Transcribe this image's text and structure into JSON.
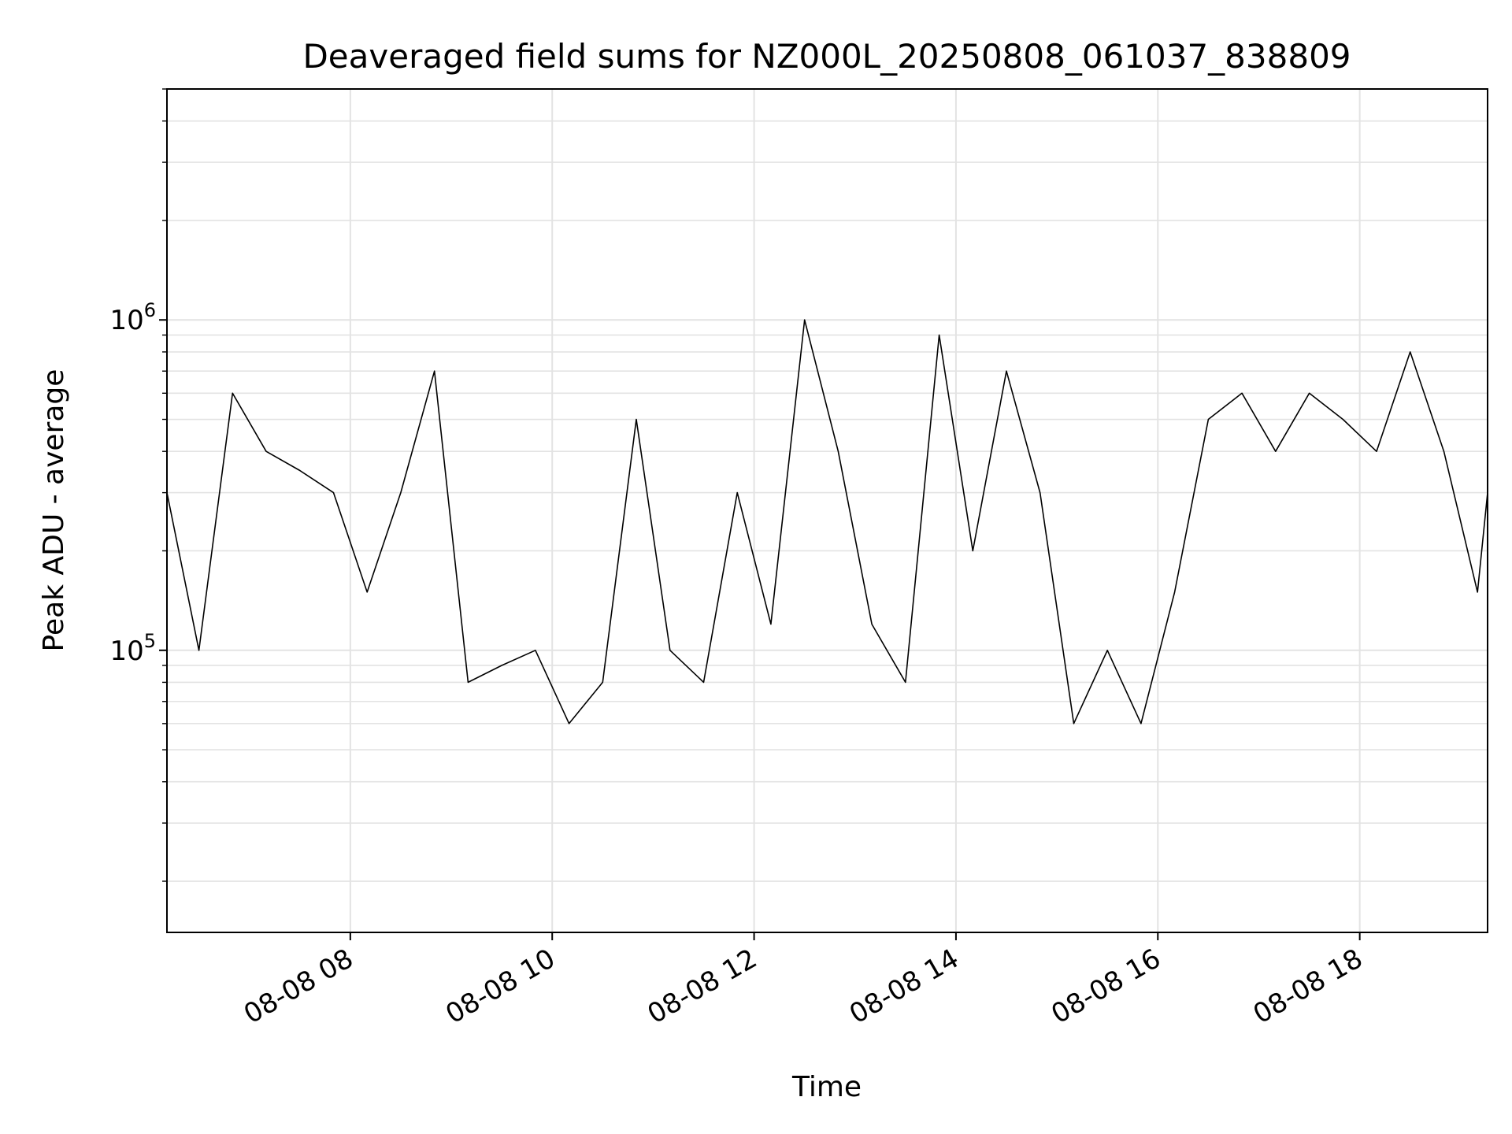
{
  "chart_data": {
    "type": "line",
    "title": "Deaveraged field sums for NZ000L_20250808_061037_838809",
    "xlabel": "Time",
    "ylabel": "Peak ADU - average",
    "yscale": "log",
    "ylim": [
      14000,
      5000000
    ],
    "xlim": [
      "2025-08-08 06:11",
      "2025-08-08 19:16"
    ],
    "grid": true,
    "x_ticks": [
      {
        "value": "2025-08-08 08:00",
        "label": "08-08 08"
      },
      {
        "value": "2025-08-08 10:00",
        "label": "08-08 10"
      },
      {
        "value": "2025-08-08 12:00",
        "label": "08-08 12"
      },
      {
        "value": "2025-08-08 14:00",
        "label": "08-08 14"
      },
      {
        "value": "2025-08-08 16:00",
        "label": "08-08 16"
      },
      {
        "value": "2025-08-08 18:00",
        "label": "08-08 18"
      }
    ],
    "y_ticks": [
      {
        "value": 100000,
        "base": "10",
        "exp": "5"
      },
      {
        "value": 1000000,
        "base": "10",
        "exp": "6"
      }
    ],
    "series": [
      {
        "color": "#000000",
        "x": [
          "2025-08-08 06:11",
          "2025-08-08 06:30",
          "2025-08-08 06:50",
          "2025-08-08 07:10",
          "2025-08-08 07:30",
          "2025-08-08 07:50",
          "2025-08-08 08:10",
          "2025-08-08 08:30",
          "2025-08-08 08:50",
          "2025-08-08 09:10",
          "2025-08-08 09:30",
          "2025-08-08 09:50",
          "2025-08-08 10:10",
          "2025-08-08 10:30",
          "2025-08-08 10:50",
          "2025-08-08 11:10",
          "2025-08-08 11:30",
          "2025-08-08 11:50",
          "2025-08-08 12:10",
          "2025-08-08 12:30",
          "2025-08-08 12:50",
          "2025-08-08 13:10",
          "2025-08-08 13:30",
          "2025-08-08 13:50",
          "2025-08-08 14:10",
          "2025-08-08 14:30",
          "2025-08-08 14:50",
          "2025-08-08 15:10",
          "2025-08-08 15:30",
          "2025-08-08 15:50",
          "2025-08-08 16:10",
          "2025-08-08 16:30",
          "2025-08-08 16:50",
          "2025-08-08 17:10",
          "2025-08-08 17:30",
          "2025-08-08 17:50",
          "2025-08-08 18:10",
          "2025-08-08 18:30",
          "2025-08-08 18:50",
          "2025-08-08 19:10",
          "2025-08-08 19:16"
        ],
        "y": [
          300000,
          100000,
          600000,
          400000,
          350000,
          300000,
          150000,
          300000,
          700000,
          80000,
          90000,
          100000,
          60000,
          80000,
          500000,
          100000,
          80000,
          300000,
          120000,
          1000000,
          400000,
          120000,
          80000,
          900000,
          200000,
          700000,
          300000,
          60000,
          100000,
          60000,
          150000,
          500000,
          600000,
          400000,
          600000,
          500000,
          400000,
          800000,
          400000,
          150000,
          300000
        ]
      }
    ]
  }
}
